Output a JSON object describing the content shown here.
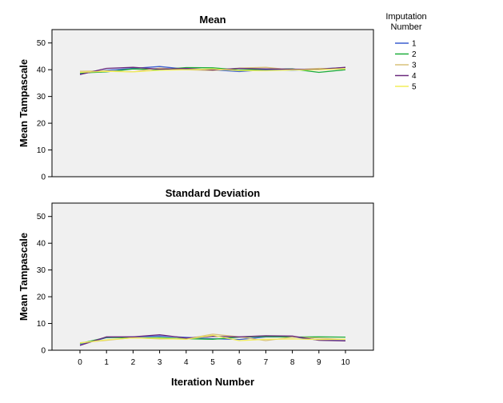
{
  "chart_data": [
    {
      "type": "line",
      "title": "Mean",
      "ylabel": "Mean Tampascale",
      "xlabel": "",
      "x": [
        0,
        1,
        2,
        3,
        4,
        5,
        6,
        7,
        8,
        9,
        10
      ],
      "ylim": [
        0,
        55
      ],
      "yticks": [
        0,
        10,
        20,
        30,
        40,
        50
      ],
      "grid": false,
      "series": [
        {
          "name": "1",
          "values": [
            38.5,
            39.8,
            40.5,
            41.2,
            40.2,
            40.0,
            39.3,
            40.0,
            39.8,
            40.3,
            40.8
          ]
        },
        {
          "name": "2",
          "values": [
            38.8,
            39.2,
            40.3,
            40.0,
            40.8,
            40.7,
            39.9,
            40.2,
            40.3,
            39.0,
            40.0
          ]
        },
        {
          "name": "3",
          "values": [
            39.4,
            39.6,
            39.2,
            40.6,
            40.0,
            39.7,
            40.6,
            40.9,
            39.9,
            40.5,
            40.3
          ]
        },
        {
          "name": "4",
          "values": [
            38.2,
            40.5,
            40.9,
            40.2,
            40.5,
            39.9,
            40.5,
            40.3,
            40.2,
            40.1,
            40.9
          ]
        },
        {
          "name": "5",
          "values": [
            39.0,
            39.4,
            39.2,
            39.8,
            40.0,
            40.3,
            39.7,
            39.6,
            39.9,
            40.0,
            40.4
          ]
        }
      ]
    },
    {
      "type": "line",
      "title": "Standard Deviation",
      "ylabel": "Mean Tampascale",
      "xlabel": "Iteration Number",
      "x": [
        0,
        1,
        2,
        3,
        4,
        5,
        6,
        7,
        8,
        9,
        10
      ],
      "ylim": [
        0,
        55
      ],
      "yticks": [
        0,
        10,
        20,
        30,
        40,
        50
      ],
      "grid": false,
      "series": [
        {
          "name": "1",
          "values": [
            2.0,
            4.7,
            5.0,
            5.3,
            4.8,
            4.3,
            4.0,
            5.0,
            5.0,
            3.8,
            3.6
          ]
        },
        {
          "name": "2",
          "values": [
            2.5,
            4.8,
            4.6,
            4.7,
            4.3,
            4.1,
            4.9,
            5.1,
            4.9,
            5.0,
            4.9
          ]
        },
        {
          "name": "3",
          "values": [
            2.8,
            3.7,
            4.7,
            4.2,
            4.2,
            6.0,
            5.0,
            3.6,
            4.9,
            4.5,
            4.0
          ]
        },
        {
          "name": "4",
          "values": [
            1.8,
            5.0,
            5.0,
            5.8,
            4.5,
            5.2,
            5.0,
            5.4,
            5.3,
            3.7,
            3.5
          ]
        },
        {
          "name": "5",
          "values": [
            2.7,
            3.9,
            4.6,
            4.4,
            4.1,
            5.6,
            3.6,
            4.1,
            4.2,
            4.0,
            4.1
          ]
        }
      ]
    }
  ],
  "legend": {
    "title_line1": "Imputation",
    "title_line2": "Number",
    "placement": "top-right",
    "entries": [
      {
        "label": "1",
        "color": "#3b5fcf"
      },
      {
        "label": "2",
        "color": "#1fae3a"
      },
      {
        "label": "3",
        "color": "#d9c27a"
      },
      {
        "label": "4",
        "color": "#6b2a7e"
      },
      {
        "label": "5",
        "color": "#f2ee5a"
      }
    ]
  },
  "colors": {
    "plot_background": "#f0f0f0",
    "frame": "#000000"
  }
}
